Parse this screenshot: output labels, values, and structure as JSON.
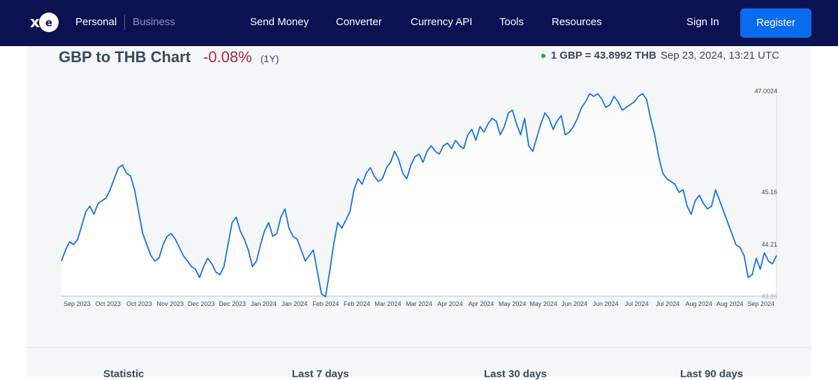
{
  "nav": {
    "logo": "xe",
    "segments": [
      "Personal",
      "Business"
    ],
    "links": [
      "Send Money",
      "Converter",
      "Currency API",
      "Tools",
      "Resources"
    ],
    "sign_in": "Sign In",
    "register": "Register"
  },
  "header": {
    "title": "GBP to THB Chart",
    "change": "-0.08%",
    "period": "(1Y)",
    "rate": "1 GBP = 43.8992 THB",
    "timestamp": "Sep 23, 2024, 13:21 UTC"
  },
  "colors": {
    "nav_bg": "#0a1252",
    "accent": "#0a6ced",
    "line": "#1672e0",
    "negative": "#b0233e",
    "live_dot": "#1faa3a"
  },
  "chart_data": {
    "type": "line",
    "series": [
      {
        "values": [
          43.9,
          44.1,
          44.25,
          44.2,
          44.3,
          44.55,
          44.8,
          44.9,
          44.75,
          44.95,
          45.0,
          45.05,
          45.2,
          45.4,
          45.6,
          45.65,
          45.5,
          45.45,
          45.2,
          44.8,
          44.4,
          44.2,
          44.0,
          43.9,
          43.95,
          44.2,
          44.35,
          44.4,
          44.3,
          44.15,
          44.0,
          43.9,
          43.8,
          43.75,
          43.6,
          43.8,
          43.95,
          43.85,
          43.7,
          43.65,
          43.8,
          44.2,
          44.6,
          44.7,
          44.45,
          44.3,
          44.1,
          43.8,
          43.9,
          44.2,
          44.45,
          44.6,
          44.35,
          44.4,
          44.7,
          44.85,
          44.5,
          44.35,
          44.3,
          44.1,
          43.9,
          44.0,
          44.1,
          43.7,
          43.3,
          43.25,
          43.7,
          44.2,
          44.6,
          44.5,
          44.65,
          44.8,
          45.2,
          45.4,
          45.3,
          45.5,
          45.6,
          45.45,
          45.35,
          45.4,
          45.6,
          45.7,
          45.9,
          45.75,
          45.5,
          45.4,
          45.65,
          45.8,
          45.85,
          45.7,
          45.9,
          46.0,
          45.9,
          45.85,
          46.0,
          46.05,
          45.95,
          46.1,
          46.0,
          45.95,
          46.2,
          46.3,
          46.1,
          46.35,
          46.25,
          46.4,
          46.5,
          46.45,
          46.2,
          46.35,
          46.6,
          46.65,
          46.4,
          46.2,
          46.5,
          46.0,
          45.9,
          46.15,
          46.4,
          46.6,
          46.5,
          46.3,
          46.45,
          46.55,
          46.2,
          46.25,
          46.35,
          46.5,
          46.7,
          46.8,
          46.95,
          46.9,
          46.95,
          46.85,
          46.7,
          46.75,
          46.9,
          46.8,
          46.65,
          46.7,
          46.75,
          46.8,
          46.9,
          46.95,
          46.85,
          46.5,
          46.2,
          45.8,
          45.5,
          45.4,
          45.35,
          45.3,
          45.15,
          45.2,
          44.9,
          44.75,
          45.0,
          45.1,
          44.95,
          44.85,
          44.9,
          45.2,
          45.0,
          44.8,
          44.6,
          44.4,
          44.2,
          44.15,
          44.0,
          43.6,
          43.65,
          43.95,
          43.75,
          44.05,
          43.9,
          43.85,
          44.0
        ]
      }
    ],
    "x_labels": [
      "Sep 2023",
      "Oct 2023",
      "Oct 2023",
      "Nov 2023",
      "Dec 2023",
      "Dec 2023",
      "Jan 2024",
      "Jan 2024",
      "Feb 2024",
      "Feb 2024",
      "Mar 2024",
      "Mar 2024",
      "Apr 2024",
      "Apr 2024",
      "May 2024",
      "May 2024",
      "Jun 2024",
      "Jun 2024",
      "Jul 2024",
      "Jul 2024",
      "Aug 2024",
      "Aug 2024",
      "Sep 2024"
    ],
    "y_ticks": [
      "47.0024",
      "45.16",
      "44.21",
      "43.26"
    ],
    "ylim": [
      43.26,
      47.0024
    ],
    "grid": false,
    "legend": "none"
  },
  "stats": {
    "headers": [
      "Statistic",
      "Last 7 days",
      "Last 30 days",
      "Last 90 days"
    ]
  }
}
